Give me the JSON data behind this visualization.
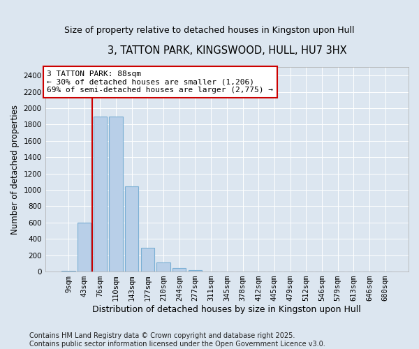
{
  "title": "3, TATTON PARK, KINGSWOOD, HULL, HU7 3HX",
  "subtitle": "Size of property relative to detached houses in Kingston upon Hull",
  "xlabel": "Distribution of detached houses by size in Kingston upon Hull",
  "ylabel": "Number of detached properties",
  "categories": [
    "9sqm",
    "43sqm",
    "76sqm",
    "110sqm",
    "143sqm",
    "177sqm",
    "210sqm",
    "244sqm",
    "277sqm",
    "311sqm",
    "345sqm",
    "378sqm",
    "412sqm",
    "445sqm",
    "479sqm",
    "512sqm",
    "546sqm",
    "579sqm",
    "613sqm",
    "646sqm",
    "680sqm"
  ],
  "values": [
    10,
    600,
    1900,
    1900,
    1040,
    290,
    115,
    40,
    17,
    0,
    0,
    0,
    0,
    0,
    0,
    0,
    0,
    0,
    0,
    0,
    0
  ],
  "bar_color": "#b8cfe8",
  "bar_edge_color": "#7aafd4",
  "background_color": "#dce6f0",
  "grid_color": "#ffffff",
  "annotation_text": "3 TATTON PARK: 88sqm\n← 30% of detached houses are smaller (1,206)\n69% of semi-detached houses are larger (2,775) →",
  "annotation_box_color": "#ffffff",
  "annotation_box_edge": "#cc0000",
  "red_line_x": 1.5,
  "ylim": [
    0,
    2500
  ],
  "yticks": [
    0,
    200,
    400,
    600,
    800,
    1000,
    1200,
    1400,
    1600,
    1800,
    2000,
    2200,
    2400
  ],
  "footer": "Contains HM Land Registry data © Crown copyright and database right 2025.\nContains public sector information licensed under the Open Government Licence v3.0.",
  "title_fontsize": 10.5,
  "subtitle_fontsize": 9,
  "xlabel_fontsize": 9,
  "ylabel_fontsize": 8.5,
  "tick_fontsize": 7.5,
  "annotation_fontsize": 8,
  "footer_fontsize": 7
}
